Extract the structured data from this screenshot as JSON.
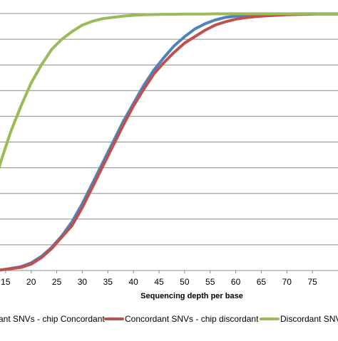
{
  "chart_data": {
    "type": "line",
    "title": "",
    "xlabel": "Sequencing depth per base",
    "ylabel": "",
    "xlim": [
      10,
      80
    ],
    "ylim": [
      0,
      1
    ],
    "x_ticks": [
      15,
      20,
      25,
      30,
      35,
      40,
      45,
      50,
      55,
      60,
      65,
      70,
      75
    ],
    "y_gridlines": [
      0.1,
      0.2,
      0.3,
      0.4,
      0.5,
      0.6,
      0.7,
      0.8,
      0.9,
      1.0
    ],
    "grid": true,
    "legend_position": "bottom",
    "series": [
      {
        "name": "ant SNVs - chip Concordant",
        "color": "#4f81bd",
        "x": [
          10,
          12,
          14,
          16,
          18,
          20,
          22,
          24,
          26,
          28,
          30,
          32,
          34,
          36,
          38,
          40,
          42,
          44,
          46,
          48,
          50,
          52,
          54,
          56,
          58,
          60,
          62,
          64,
          66,
          68,
          70,
          72,
          74,
          76,
          78,
          80
        ],
        "y": [
          0.0,
          0.0,
          0.002,
          0.008,
          0.015,
          0.03,
          0.055,
          0.09,
          0.135,
          0.19,
          0.26,
          0.34,
          0.42,
          0.5,
          0.58,
          0.65,
          0.72,
          0.78,
          0.83,
          0.875,
          0.91,
          0.94,
          0.96,
          0.975,
          0.985,
          0.99,
          0.994,
          0.996,
          0.997,
          0.998,
          0.998,
          0.999,
          0.999,
          0.999,
          0.999,
          0.999
        ]
      },
      {
        "name": "Concordant SNVs - chip discordant",
        "color": "#c0504d",
        "x": [
          10,
          12,
          14,
          16,
          18,
          20,
          22,
          24,
          26,
          28,
          30,
          32,
          34,
          36,
          38,
          40,
          42,
          44,
          46,
          48,
          50,
          52,
          54,
          56,
          58,
          60,
          62,
          64,
          66,
          68,
          70,
          72,
          74,
          76,
          78,
          80
        ],
        "y": [
          0.0,
          0.0,
          0.002,
          0.007,
          0.012,
          0.025,
          0.05,
          0.085,
          0.13,
          0.175,
          0.245,
          0.325,
          0.405,
          0.485,
          0.565,
          0.64,
          0.705,
          0.765,
          0.81,
          0.85,
          0.885,
          0.91,
          0.935,
          0.955,
          0.968,
          0.978,
          0.984,
          0.988,
          0.991,
          0.993,
          0.995,
          0.996,
          0.997,
          0.998,
          0.998,
          0.998
        ]
      },
      {
        "name": "Discordant SNVs -",
        "color": "#9bbb59",
        "x": [
          10,
          12,
          14,
          16,
          18,
          20,
          22,
          24,
          26,
          28,
          30,
          32,
          34,
          36,
          38,
          40,
          42,
          44,
          46,
          48,
          50,
          52,
          54,
          56,
          58,
          60,
          62,
          64,
          66,
          68,
          70,
          72,
          74,
          76,
          78,
          80
        ],
        "y": [
          0.15,
          0.28,
          0.42,
          0.54,
          0.64,
          0.73,
          0.8,
          0.86,
          0.9,
          0.93,
          0.955,
          0.97,
          0.98,
          0.985,
          0.99,
          0.993,
          0.995,
          0.996,
          0.997,
          0.997,
          0.998,
          0.998,
          0.998,
          0.999,
          0.999,
          0.999,
          0.999,
          0.999,
          0.999,
          0.999,
          0.999,
          0.999,
          0.999,
          0.999,
          0.999,
          0.999
        ]
      }
    ]
  }
}
